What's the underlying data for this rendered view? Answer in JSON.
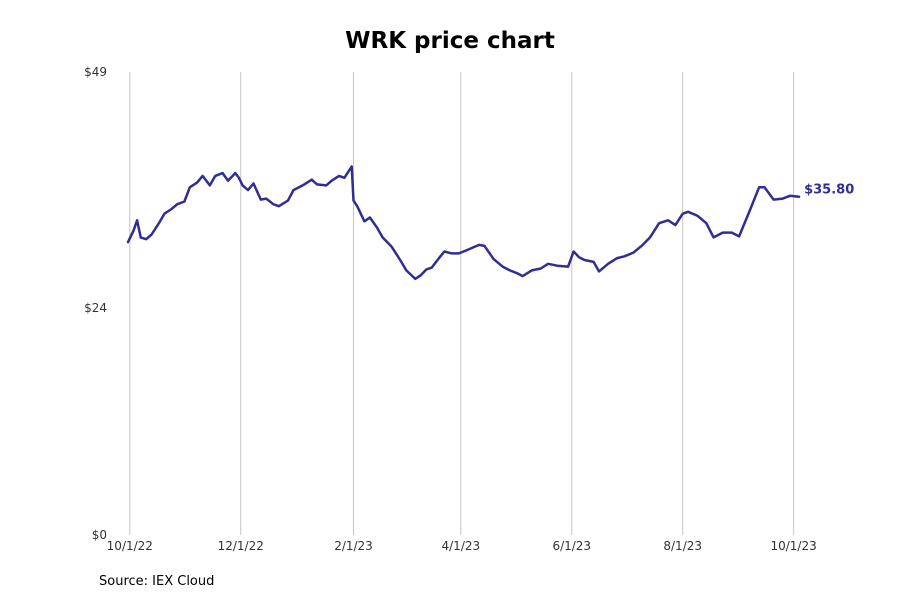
{
  "chart_data": {
    "type": "line",
    "title": "WRK price chart",
    "source": "Source: IEX Cloud",
    "xlabel": "",
    "ylabel": "",
    "ylim": [
      0,
      49
    ],
    "y_ticks": [
      {
        "value": 0,
        "label": "$0"
      },
      {
        "value": 24,
        "label": "$24"
      },
      {
        "value": 49,
        "label": "$49"
      }
    ],
    "x_ticks": [
      {
        "value": "2022-10-01",
        "label": "10/1/22"
      },
      {
        "value": "2022-12-01",
        "label": "12/1/22"
      },
      {
        "value": "2023-02-01",
        "label": "2/1/23"
      },
      {
        "value": "2023-04-01",
        "label": "4/1/23"
      },
      {
        "value": "2023-06-01",
        "label": "6/1/23"
      },
      {
        "value": "2023-08-01",
        "label": "8/1/23"
      },
      {
        "value": "2023-10-01",
        "label": "10/1/23"
      }
    ],
    "xlim": [
      "2022-09-30",
      "2023-10-10"
    ],
    "grid": "vertical",
    "line_color": "#302e92",
    "end_label": "$35.80",
    "series": [
      {
        "x": [
          "2022-09-30",
          "2022-10-03",
          "2022-10-05",
          "2022-10-07",
          "2022-10-10",
          "2022-10-13",
          "2022-10-17",
          "2022-10-20",
          "2022-10-24",
          "2022-10-27",
          "2022-10-31",
          "2022-11-03",
          "2022-11-07",
          "2022-11-10",
          "2022-11-14",
          "2022-11-17",
          "2022-11-21",
          "2022-11-24",
          "2022-11-28",
          "2022-11-30",
          "2022-12-02",
          "2022-12-05",
          "2022-12-08",
          "2022-12-12",
          "2022-12-15",
          "2022-12-19",
          "2022-12-22",
          "2022-12-27",
          "2022-12-30",
          "2023-01-04",
          "2023-01-09",
          "2023-01-12",
          "2023-01-17",
          "2023-01-20",
          "2023-01-24",
          "2023-01-27",
          "2023-01-31",
          "2023-02-01",
          "2023-02-03",
          "2023-02-07",
          "2023-02-10",
          "2023-02-14",
          "2023-02-17",
          "2023-02-22",
          "2023-02-27",
          "2023-03-02",
          "2023-03-07",
          "2023-03-10",
          "2023-03-13",
          "2023-03-16",
          "2023-03-20",
          "2023-03-23",
          "2023-03-27",
          "2023-03-31",
          "2023-04-05",
          "2023-04-11",
          "2023-04-14",
          "2023-04-19",
          "2023-04-24",
          "2023-04-28",
          "2023-05-02",
          "2023-05-05",
          "2023-05-10",
          "2023-05-15",
          "2023-05-19",
          "2023-05-24",
          "2023-05-30",
          "2023-06-02",
          "2023-06-05",
          "2023-06-08",
          "2023-06-13",
          "2023-06-16",
          "2023-06-21",
          "2023-06-26",
          "2023-06-30",
          "2023-07-05",
          "2023-07-10",
          "2023-07-14",
          "2023-07-19",
          "2023-07-24",
          "2023-07-28",
          "2023-08-01",
          "2023-08-04",
          "2023-08-09",
          "2023-08-14",
          "2023-08-18",
          "2023-08-23",
          "2023-08-28",
          "2023-09-01",
          "2023-09-07",
          "2023-09-12",
          "2023-09-15",
          "2023-09-20",
          "2023-09-25",
          "2023-09-29",
          "2023-10-04"
        ],
        "values": [
          31.0,
          32.2,
          33.3,
          31.5,
          31.3,
          31.8,
          33.0,
          34.0,
          34.5,
          35.0,
          35.3,
          36.8,
          37.3,
          38.0,
          37.0,
          38.0,
          38.3,
          37.5,
          38.3,
          37.8,
          37.0,
          36.5,
          37.2,
          35.5,
          35.6,
          35.0,
          34.8,
          35.4,
          36.5,
          37.0,
          37.6,
          37.1,
          37.0,
          37.5,
          38.0,
          37.8,
          39.0,
          35.4,
          34.8,
          33.2,
          33.6,
          32.5,
          31.5,
          30.5,
          29.0,
          28.0,
          27.1,
          27.5,
          28.1,
          28.3,
          29.3,
          30.0,
          29.8,
          29.8,
          30.2,
          30.7,
          30.6,
          29.2,
          28.4,
          28.0,
          27.7,
          27.4,
          28.0,
          28.2,
          28.7,
          28.5,
          28.4,
          30.0,
          29.4,
          29.1,
          28.9,
          27.9,
          28.7,
          29.3,
          29.5,
          29.9,
          30.7,
          31.5,
          33.0,
          33.3,
          32.8,
          34.0,
          34.2,
          33.8,
          33.0,
          31.5,
          32.0,
          32.0,
          31.6,
          34.4,
          36.8,
          36.8,
          35.5,
          35.6,
          35.9,
          35.8
        ]
      }
    ]
  }
}
